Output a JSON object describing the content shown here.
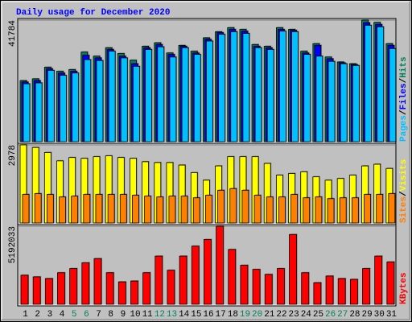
{
  "chart_data": {
    "type": "bar",
    "title": "Daily usage for December 2020",
    "categories": [
      "1",
      "2",
      "3",
      "4",
      "5",
      "6",
      "7",
      "8",
      "9",
      "10",
      "11",
      "12",
      "13",
      "14",
      "15",
      "16",
      "17",
      "18",
      "19",
      "20",
      "21",
      "22",
      "23",
      "24",
      "25",
      "26",
      "27",
      "28",
      "29",
      "30",
      "31"
    ],
    "category_color": "#000000",
    "weekends": [
      "5",
      "6",
      "12",
      "13",
      "19",
      "20",
      "26",
      "27"
    ],
    "weekend_color": "#00805c",
    "label_separator": "/",
    "panels": [
      {
        "ylim": [
          0,
          41784
        ],
        "yticks": [
          41784
        ],
        "series": [
          {
            "name": "Hits",
            "color": "#00805c",
            "values": [
              21000,
              21600,
              25600,
              24200,
              24800,
              30800,
              29400,
              32300,
              30300,
              28000,
              32800,
              34000,
              30500,
              33100,
              31100,
              35700,
              37800,
              39200,
              38600,
              33400,
              32800,
              39200,
              38600,
              31100,
              33700,
              29100,
              27400,
              26800,
              41784,
              41000,
              33700
            ]
          },
          {
            "name": "Files",
            "color": "#0000ff",
            "values": [
              20500,
              21000,
              25100,
              23600,
              24200,
              29700,
              28800,
              31700,
              29400,
              26800,
              32300,
              33400,
              30000,
              32800,
              30500,
              35200,
              37500,
              38600,
              38000,
              32800,
              32300,
              38600,
              38300,
              30500,
              33100,
              28500,
              27100,
              26500,
              40900,
              40300,
              33100
            ]
          },
          {
            "name": "Pages",
            "color": "#00c0ff",
            "values": [
              19900,
              20200,
              24500,
              22800,
              23600,
              28200,
              27900,
              31100,
              28800,
              25900,
              31700,
              32600,
              29100,
              32300,
              30000,
              34600,
              36900,
              37800,
              37200,
              32300,
              31700,
              38000,
              37800,
              30000,
              29400,
              27600,
              26800,
              26200,
              40000,
              39500,
              32000
            ]
          }
        ]
      },
      {
        "ylim": [
          0,
          2978
        ],
        "yticks": [
          2978
        ],
        "series": [
          {
            "name": "Visits",
            "color": "#ffff00",
            "values": [
              2978,
              2880,
              2688,
              2368,
              2496,
              2464,
              2528,
              2560,
              2496,
              2464,
              2336,
              2304,
              2304,
              2208,
              1920,
              1632,
              2176,
              2528,
              2528,
              2528,
              2272,
              1824,
              1888,
              1952,
              1760,
              1632,
              1696,
              1824,
              2176,
              2240,
              2080
            ]
          },
          {
            "name": "Sites",
            "color": "#ff8000",
            "values": [
              1088,
              1120,
              1088,
              992,
              1024,
              1088,
              1088,
              1088,
              1088,
              1056,
              1024,
              992,
              1024,
              1024,
              960,
              1056,
              1248,
              1312,
              1248,
              1056,
              992,
              992,
              1088,
              960,
              992,
              928,
              960,
              960,
              1088,
              1088,
              1120
            ]
          }
        ]
      },
      {
        "ylim": [
          0,
          5192033
        ],
        "yticks": [
          5192033
        ],
        "series": [
          {
            "name": "KBytes",
            "color": "#ff0000",
            "values": [
              1932000,
              1822700,
              1712300,
              2098900,
              2375100,
              2761700,
              3037900,
              2098900,
              1491300,
              1546600,
              2098900,
              3203600,
              2264600,
              3203600,
              3866400,
              4308300,
              5192033,
              3645400,
              2596000,
              2319800,
              1988400,
              2375100,
              4639700,
              2098900,
              1436100,
              1878000,
              1712300,
              1657000,
              2375100,
              3203600,
              2816900
            ]
          }
        ]
      }
    ]
  }
}
